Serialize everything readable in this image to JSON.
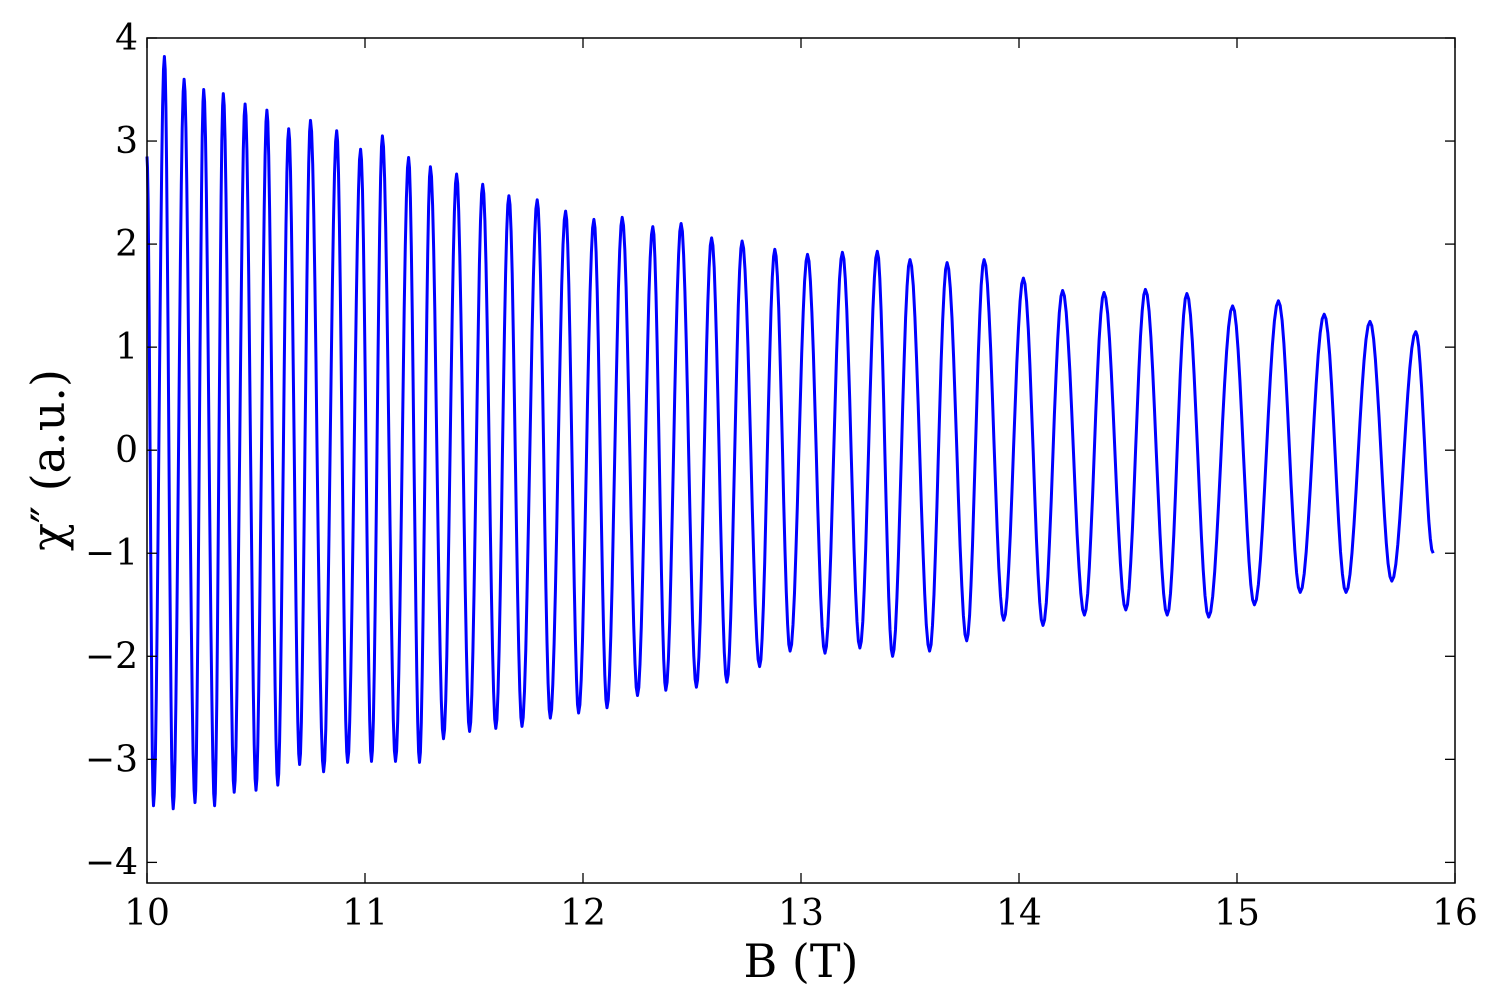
{
  "chart_data": {
    "type": "line",
    "title": "",
    "xlabel": "B (T)",
    "ylabel": "χ″ (a.u.)",
    "xlim": [
      10,
      16
    ],
    "ylim": [
      -4.2,
      4.0
    ],
    "xticks": [
      10,
      11,
      12,
      13,
      14,
      15,
      16
    ],
    "yticks": [
      -4,
      -3,
      -2,
      -1,
      0,
      1,
      2,
      3,
      4
    ],
    "xtick_labels": [
      "10",
      "11",
      "12",
      "13",
      "14",
      "15",
      "16"
    ],
    "ytick_labels": [
      "−4",
      "−3",
      "−2",
      "−1",
      "0",
      "1",
      "2",
      "3",
      "4"
    ],
    "grid": false,
    "legend": "none",
    "series": [
      {
        "color": "#0000ff",
        "x_start": 10.0,
        "x_end": 15.9,
        "peaks": [
          [
            10.08,
            3.82
          ],
          [
            10.17,
            3.6
          ],
          [
            10.26,
            3.5
          ],
          [
            10.35,
            3.46
          ],
          [
            10.45,
            3.36
          ],
          [
            10.55,
            3.3
          ],
          [
            10.65,
            3.12
          ],
          [
            10.75,
            3.2
          ],
          [
            10.87,
            3.1
          ],
          [
            10.98,
            2.92
          ],
          [
            11.08,
            3.05
          ],
          [
            11.2,
            2.84
          ],
          [
            11.3,
            2.75
          ],
          [
            11.42,
            2.68
          ],
          [
            11.54,
            2.58
          ],
          [
            11.66,
            2.47
          ],
          [
            11.79,
            2.43
          ],
          [
            11.92,
            2.32
          ],
          [
            12.05,
            2.24
          ],
          [
            12.18,
            2.26
          ],
          [
            12.32,
            2.17
          ],
          [
            12.45,
            2.2
          ],
          [
            12.59,
            2.06
          ],
          [
            12.73,
            2.03
          ],
          [
            12.88,
            1.95
          ],
          [
            13.03,
            1.9
          ],
          [
            13.19,
            1.92
          ],
          [
            13.35,
            1.93
          ],
          [
            13.5,
            1.85
          ],
          [
            13.67,
            1.82
          ],
          [
            13.84,
            1.85
          ],
          [
            14.02,
            1.67
          ],
          [
            14.2,
            1.55
          ],
          [
            14.39,
            1.53
          ],
          [
            14.58,
            1.56
          ],
          [
            14.77,
            1.52
          ],
          [
            14.98,
            1.4
          ],
          [
            15.19,
            1.45
          ],
          [
            15.4,
            1.32
          ],
          [
            15.61,
            1.25
          ],
          [
            15.82,
            1.15
          ]
        ],
        "troughs": [
          [
            10.03,
            -3.45
          ],
          [
            10.12,
            -3.48
          ],
          [
            10.22,
            -3.42
          ],
          [
            10.31,
            -3.45
          ],
          [
            10.4,
            -3.32
          ],
          [
            10.5,
            -3.3
          ],
          [
            10.6,
            -3.25
          ],
          [
            10.7,
            -3.05
          ],
          [
            10.81,
            -3.12
          ],
          [
            10.92,
            -3.03
          ],
          [
            11.03,
            -3.02
          ],
          [
            11.14,
            -3.02
          ],
          [
            11.25,
            -3.03
          ],
          [
            11.36,
            -2.8
          ],
          [
            11.48,
            -2.73
          ],
          [
            11.6,
            -2.7
          ],
          [
            11.72,
            -2.68
          ],
          [
            11.85,
            -2.6
          ],
          [
            11.98,
            -2.55
          ],
          [
            12.11,
            -2.5
          ],
          [
            12.25,
            -2.38
          ],
          [
            12.38,
            -2.33
          ],
          [
            12.52,
            -2.3
          ],
          [
            12.66,
            -2.25
          ],
          [
            12.81,
            -2.1
          ],
          [
            12.95,
            -1.95
          ],
          [
            13.11,
            -1.97
          ],
          [
            13.27,
            -1.92
          ],
          [
            13.42,
            -2.0
          ],
          [
            13.59,
            -1.95
          ],
          [
            13.76,
            -1.85
          ],
          [
            13.93,
            -1.65
          ],
          [
            14.11,
            -1.7
          ],
          [
            14.3,
            -1.6
          ],
          [
            14.49,
            -1.55
          ],
          [
            14.68,
            -1.6
          ],
          [
            14.87,
            -1.62
          ],
          [
            15.08,
            -1.5
          ],
          [
            15.29,
            -1.38
          ],
          [
            15.5,
            -1.38
          ],
          [
            15.71,
            -1.27
          ]
        ],
        "end_value": -1.0
      }
    ]
  }
}
